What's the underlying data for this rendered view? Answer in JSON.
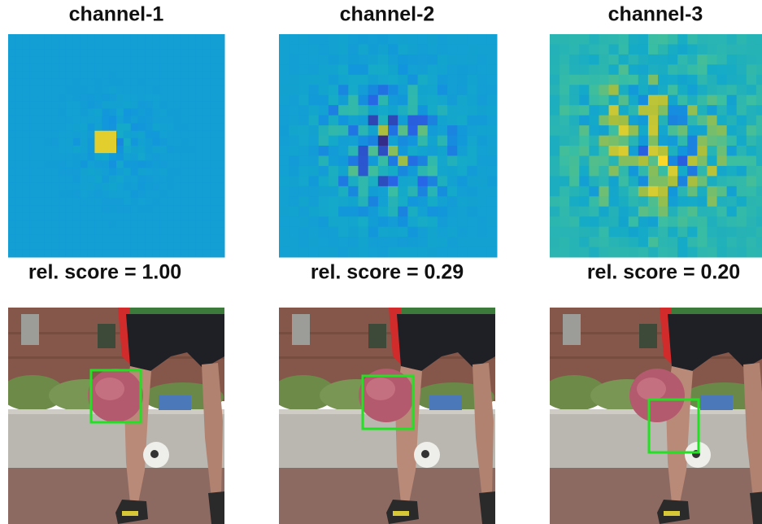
{
  "panels": [
    {
      "title": "channel-1",
      "score": "rel. score = 1.00"
    },
    {
      "title": "channel-2",
      "score": "rel. score = 0.29"
    },
    {
      "title": "channel-3",
      "score": "rel. score = 0.20"
    }
  ]
}
